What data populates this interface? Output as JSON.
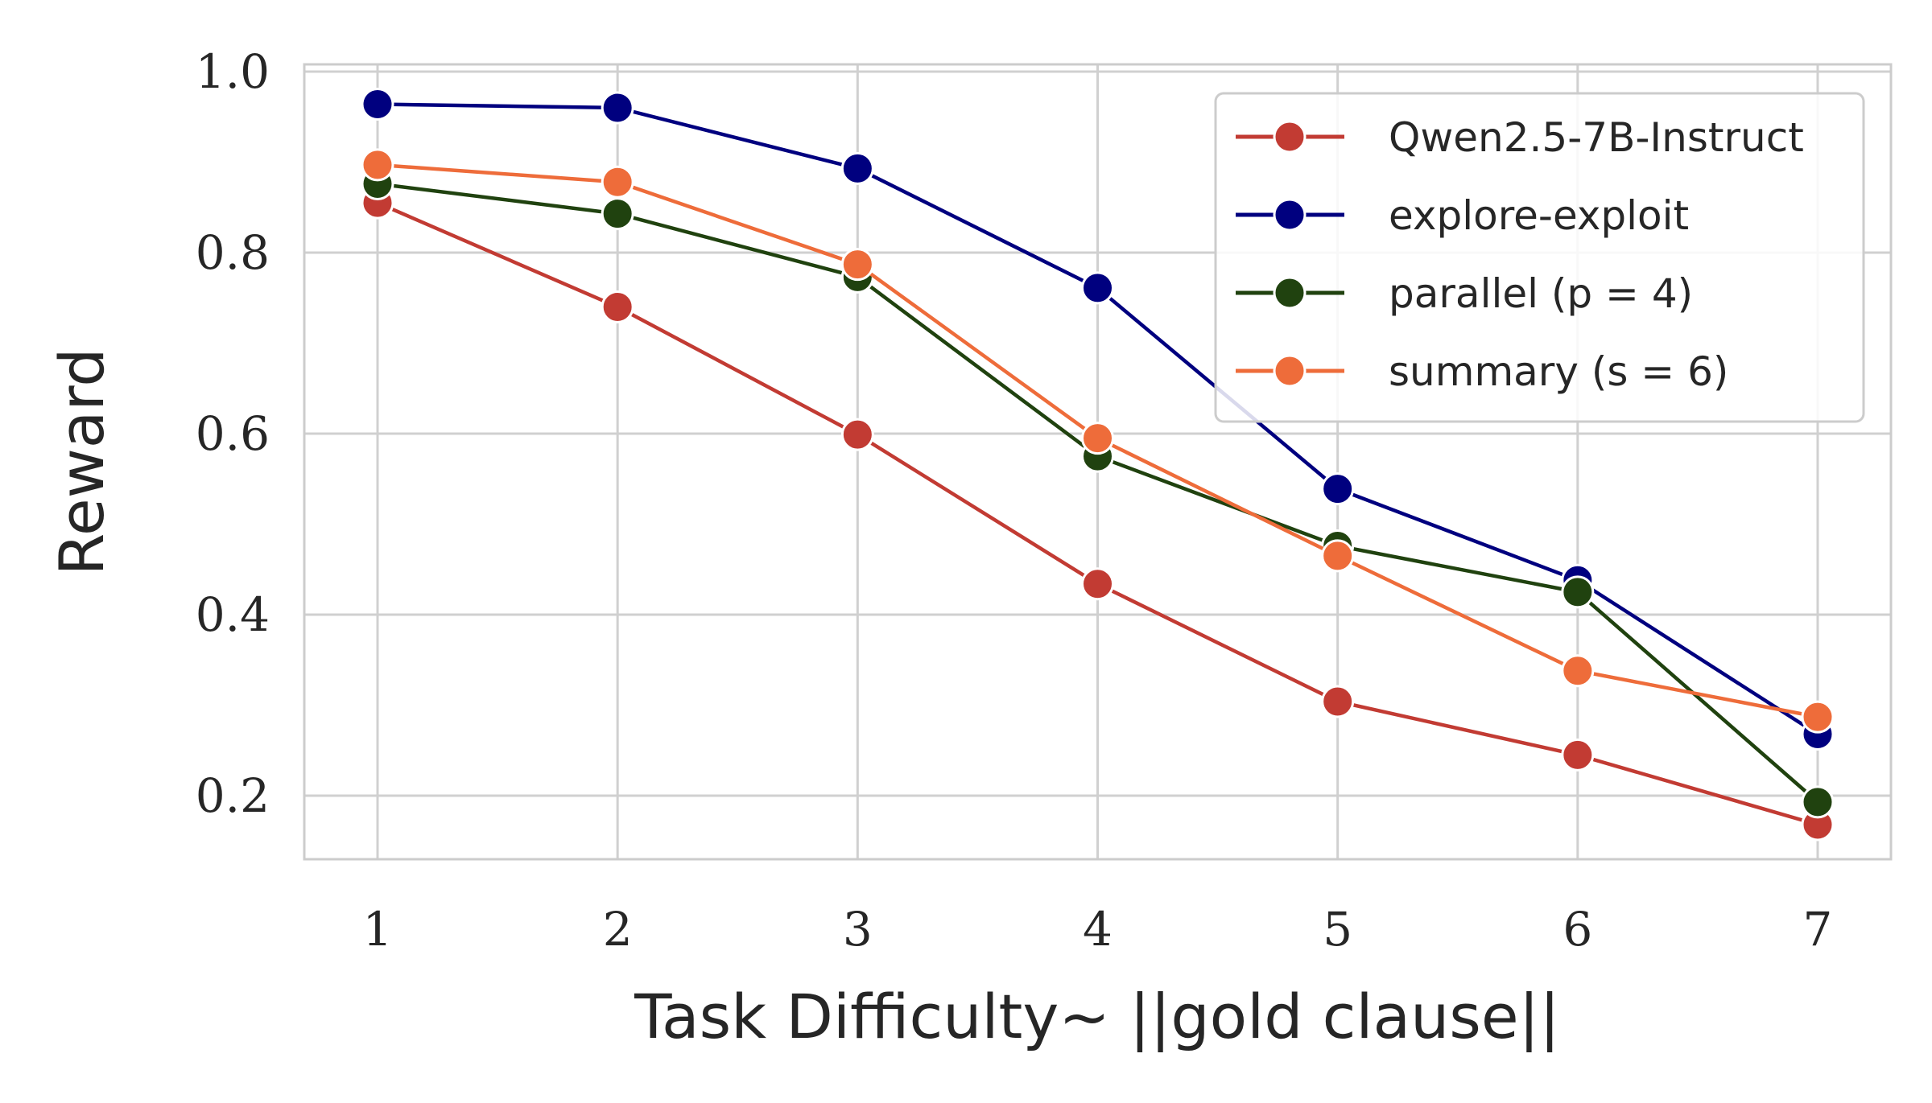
{
  "chart_data": {
    "type": "line",
    "xlabel": "Task Difficulty~ ||gold clause||",
    "ylabel": "Reward",
    "x": [
      1,
      2,
      3,
      4,
      5,
      6,
      7
    ],
    "xticks": [
      "1",
      "2",
      "3",
      "4",
      "5",
      "6",
      "7"
    ],
    "yticks": [
      "0.2",
      "0.4",
      "0.6",
      "0.8",
      "1.0"
    ],
    "ytick_values": [
      0.2,
      0.4,
      0.6,
      0.8,
      1.0
    ],
    "xlim": [
      0.7,
      7.3
    ],
    "ylim": [
      0.13,
      1.01
    ],
    "grid": true,
    "legend_position": "top-right",
    "series": [
      {
        "name": "Qwen2.5-7B-Instruct",
        "color": "#c23b33",
        "values": [
          0.855,
          0.74,
          0.599,
          0.434,
          0.304,
          0.245,
          0.168
        ]
      },
      {
        "name": "explore-exploit",
        "color": "#00007f",
        "values": [
          0.964,
          0.96,
          0.893,
          0.761,
          0.539,
          0.438,
          0.268
        ]
      },
      {
        "name": "parallel (p = 4)",
        "color": "#20420f",
        "values": [
          0.876,
          0.843,
          0.773,
          0.575,
          0.476,
          0.425,
          0.193
        ]
      },
      {
        "name": "summary (s = 6)",
        "color": "#ee6c3a",
        "values": [
          0.897,
          0.878,
          0.787,
          0.595,
          0.465,
          0.338,
          0.287
        ]
      }
    ]
  }
}
